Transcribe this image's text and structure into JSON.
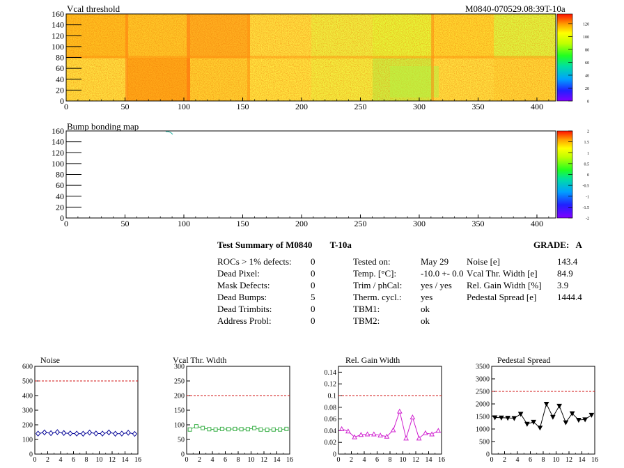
{
  "header": {
    "map1_title": "Vcal threshold",
    "run_id": "M0840-070529.08:39T-10a",
    "map2_title": "Bump bonding map"
  },
  "maps": {
    "x_ticks": [
      "0",
      "50",
      "100",
      "150",
      "200",
      "250",
      "300",
      "350",
      "400"
    ],
    "y_ticks": [
      "0",
      "20",
      "40",
      "60",
      "80",
      "100",
      "120",
      "140",
      "160"
    ],
    "vcal_palette_ticks": [
      "0",
      "20",
      "40",
      "60",
      "80",
      "100",
      "120"
    ],
    "bump_palette_ticks": [
      "-2",
      "-1.5",
      "-1",
      "-0.5",
      "0",
      "0.5",
      "1",
      "1.5",
      "2"
    ]
  },
  "summary": {
    "title": "Test Summary of M0840",
    "condition": "T-10a",
    "grade_label": "GRADE:",
    "grade": "A",
    "defects": [
      {
        "label": "ROCs > 1% defects:",
        "value": "0"
      },
      {
        "label": "Dead Pixel:",
        "value": "0"
      },
      {
        "label": "Mask Defects:",
        "value": "0"
      },
      {
        "label": "Dead Bumps:",
        "value": "5"
      },
      {
        "label": "Dead Trimbits:",
        "value": "0"
      },
      {
        "label": "Address Probl:",
        "value": "0"
      }
    ],
    "conditions": [
      {
        "label": "Tested on:",
        "value": "May 29"
      },
      {
        "label": "Temp. [°C]:",
        "value": "-10.0 +- 0.0"
      },
      {
        "label": "Trim / phCal:",
        "value": "yes / yes"
      },
      {
        "label": "Therm. cycl.:",
        "value": "yes"
      },
      {
        "label": "TBM1:",
        "value": "ok"
      },
      {
        "label": "TBM2:",
        "value": "ok"
      }
    ],
    "metrics": [
      {
        "label": "Noise [e]",
        "value": "143.4"
      },
      {
        "label": "Vcal Thr. Width [e]",
        "value": "84.9"
      },
      {
        "label": "Rel. Gain Width [%]",
        "value": "3.9"
      },
      {
        "label": "Pedestal Spread [e]",
        "value": "1444.4"
      }
    ]
  },
  "chart_data": [
    {
      "type": "line",
      "title": "Noise",
      "x": [
        0,
        1,
        2,
        3,
        4,
        5,
        6,
        7,
        8,
        9,
        10,
        11,
        12,
        13,
        14,
        15
      ],
      "values": [
        140,
        148,
        143,
        150,
        144,
        141,
        140,
        139,
        147,
        141,
        140,
        148,
        139,
        140,
        146,
        138
      ],
      "xlim": [
        0,
        16
      ],
      "ylim": [
        0,
        600
      ],
      "yticks": [
        "0",
        "100",
        "200",
        "300",
        "400",
        "500",
        "600"
      ],
      "xticks": [
        "0",
        "2",
        "4",
        "6",
        "8",
        "10",
        "12",
        "14",
        "16"
      ],
      "threshold": 500,
      "color": "#0a0a9a",
      "marker": "diamond"
    },
    {
      "type": "line",
      "title": "Vcal Thr. Width",
      "x": [
        0,
        1,
        2,
        3,
        4,
        5,
        6,
        7,
        8,
        9,
        10,
        11,
        12,
        13,
        14,
        15
      ],
      "values": [
        84,
        95,
        89,
        85,
        84,
        86,
        85,
        86,
        85,
        85,
        89,
        84,
        83,
        84,
        84,
        86
      ],
      "xlim": [
        0,
        16
      ],
      "ylim": [
        0,
        300
      ],
      "yticks": [
        "0",
        "50",
        "100",
        "150",
        "200",
        "250",
        "300"
      ],
      "xticks": [
        "0",
        "2",
        "4",
        "6",
        "8",
        "10",
        "12",
        "14",
        "16"
      ],
      "threshold": 200,
      "color": "#3cb04a",
      "marker": "square"
    },
    {
      "type": "line",
      "title": "Rel. Gain Width",
      "x": [
        0,
        1,
        2,
        3,
        4,
        5,
        6,
        7,
        8,
        9,
        10,
        11,
        12,
        13,
        14,
        15
      ],
      "values": [
        0.043,
        0.039,
        0.029,
        0.033,
        0.034,
        0.034,
        0.032,
        0.03,
        0.041,
        0.073,
        0.027,
        0.063,
        0.027,
        0.036,
        0.034,
        0.04
      ],
      "xlim": [
        0,
        16
      ],
      "ylim": [
        0,
        0.15
      ],
      "yticks": [
        "0",
        "0.02",
        "0.04",
        "0.06",
        "0.08",
        "0.1",
        "0.12",
        "0.14"
      ],
      "xticks": [
        "0",
        "2",
        "4",
        "6",
        "8",
        "10",
        "12",
        "14",
        "16"
      ],
      "threshold": 0.1,
      "color": "#d020d0",
      "marker": "triangle"
    },
    {
      "type": "line",
      "title": "Pedestal Spread",
      "x": [
        0,
        1,
        2,
        3,
        4,
        5,
        6,
        7,
        8,
        9,
        10,
        11,
        12,
        13,
        14,
        15
      ],
      "values": [
        1460,
        1450,
        1440,
        1430,
        1600,
        1200,
        1280,
        1050,
        2000,
        1480,
        1920,
        1260,
        1620,
        1360,
        1380,
        1560
      ],
      "xlim": [
        0,
        16
      ],
      "ylim": [
        0,
        3500
      ],
      "yticks": [
        "0",
        "500",
        "1000",
        "1500",
        "2000",
        "2500",
        "3000",
        "3500"
      ],
      "xticks": [
        "0",
        "2",
        "4",
        "6",
        "8",
        "10",
        "12",
        "14",
        "16"
      ],
      "threshold": 2500,
      "color": "#000000",
      "marker": "triangle-down"
    }
  ]
}
